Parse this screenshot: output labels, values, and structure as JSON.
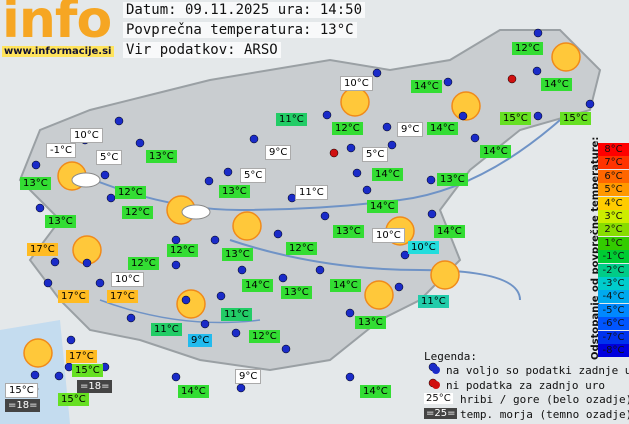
{
  "header": {
    "logo": "info",
    "url": "www.informacije.si",
    "date": "Datum: 09.11.2025 ura: 14:50",
    "average": "Povprečna temperatura: 13°C",
    "source": "Vir podatkov: ARSO"
  },
  "legend": {
    "title": "Legenda:",
    "available": "na voljo so podatki zadnje ure",
    "missing": "ni podatka za zadnjo uro",
    "hill_sample": "25°C",
    "hill": "hribi / gore (belo ozadje)",
    "sea_sample": "=25=",
    "sea": "temp. morja (temno ozadje)"
  },
  "scale": {
    "title": "Odstopanje od povprečne temperature:",
    "steps": [
      {
        "label": "8°C",
        "color": "#ff0000"
      },
      {
        "label": "7°C",
        "color": "#ff3300"
      },
      {
        "label": "6°C",
        "color": "#ff6600"
      },
      {
        "label": "5°C",
        "color": "#ff9900"
      },
      {
        "label": "4°C",
        "color": "#ffcc00"
      },
      {
        "label": "3°C",
        "color": "#ccee00"
      },
      {
        "label": "2°C",
        "color": "#88dd00"
      },
      {
        "label": "1°C",
        "color": "#33cc00"
      },
      {
        "label": "-1°C",
        "color": "#00cc33"
      },
      {
        "label": "-2°C",
        "color": "#00cc88"
      },
      {
        "label": "-3°C",
        "color": "#00cccc"
      },
      {
        "label": "-4°C",
        "color": "#00aaee"
      },
      {
        "label": "-5°C",
        "color": "#0088ff"
      },
      {
        "label": "-6°C",
        "color": "#0055ff"
      },
      {
        "label": "-7°C",
        "color": "#0033ee"
      },
      {
        "label": "-8°C",
        "color": "#0000dd"
      }
    ]
  },
  "stations": [
    {
      "label": "12°C",
      "color": "#33dd33"
    },
    {
      "label": "10°C",
      "color": "#ffffff"
    },
    {
      "label": "14°C",
      "color": "#33dd33"
    },
    {
      "label": "14°C",
      "color": "#33dd33"
    },
    {
      "label": "11°C",
      "color": "#22cc66"
    },
    {
      "label": "12°C",
      "color": "#33dd33"
    },
    {
      "label": "9°C",
      "color": "#ffffff"
    },
    {
      "label": "14°C",
      "color": "#33dd33"
    },
    {
      "label": "15°C",
      "color": "#66e022"
    },
    {
      "label": "15°C",
      "color": "#66e022"
    },
    {
      "label": "10°C",
      "color": "#ffffff"
    },
    {
      "label": "-1°C",
      "color": "#ffffff"
    },
    {
      "label": "5°C",
      "color": "#ffffff"
    },
    {
      "label": "13°C",
      "color": "#33dd33"
    },
    {
      "label": "9°C",
      "color": "#ffffff"
    },
    {
      "label": "5°C",
      "color": "#ffffff"
    },
    {
      "label": "14°C",
      "color": "#33dd33"
    },
    {
      "label": "13°C",
      "color": "#33dd33"
    },
    {
      "label": "12°C",
      "color": "#33dd33"
    },
    {
      "label": "13°C",
      "color": "#33dd33"
    },
    {
      "label": "5°C",
      "color": "#ffffff"
    },
    {
      "label": "14°C",
      "color": "#33dd33"
    },
    {
      "label": "13°C",
      "color": "#33dd33"
    },
    {
      "label": "12°C",
      "color": "#33dd33"
    },
    {
      "label": "11°C",
      "color": "#ffffff"
    },
    {
      "label": "14°C",
      "color": "#33dd33"
    },
    {
      "label": "13°C",
      "color": "#33dd33"
    },
    {
      "label": "10°C",
      "color": "#ffffff"
    },
    {
      "label": "13°C",
      "color": "#33dd33"
    },
    {
      "label": "14°C",
      "color": "#33dd33"
    },
    {
      "label": "17°C",
      "color": "#ffbb22"
    },
    {
      "label": "12°C",
      "color": "#33dd33"
    },
    {
      "label": "10°C",
      "color": "#22dddd"
    },
    {
      "label": "12°C",
      "color": "#33dd33"
    },
    {
      "label": "13°C",
      "color": "#33dd33"
    },
    {
      "label": "12°C",
      "color": "#33dd33"
    },
    {
      "label": "10°C",
      "color": "#ffffff"
    },
    {
      "label": "14°C",
      "color": "#33dd33"
    },
    {
      "label": "13°C",
      "color": "#33dd33"
    },
    {
      "label": "14°C",
      "color": "#33dd33"
    },
    {
      "label": "17°C",
      "color": "#ffbb22"
    },
    {
      "label": "17°C",
      "color": "#ffbb22"
    },
    {
      "label": "11°C",
      "color": "#22ccaa"
    },
    {
      "label": "11°C",
      "color": "#22cc66"
    },
    {
      "label": "13°C",
      "color": "#33dd33"
    },
    {
      "label": "11°C",
      "color": "#22cc66"
    },
    {
      "label": "9°C",
      "color": "#22bbee"
    },
    {
      "label": "12°C",
      "color": "#33dd33"
    },
    {
      "label": "17°C",
      "color": "#ffbb22"
    },
    {
      "label": "15°C",
      "color": "#66e022"
    },
    {
      "label": "=18=",
      "color": "#444444"
    },
    {
      "label": "15°C",
      "color": "#ffffff"
    },
    {
      "label": "9°C",
      "color": "#ffffff"
    },
    {
      "label": "15°C",
      "color": "#66e022"
    },
    {
      "label": "=18=",
      "color": "#444444"
    },
    {
      "label": "14°C",
      "color": "#33dd33"
    },
    {
      "label": "14°C",
      "color": "#33dd33"
    }
  ]
}
